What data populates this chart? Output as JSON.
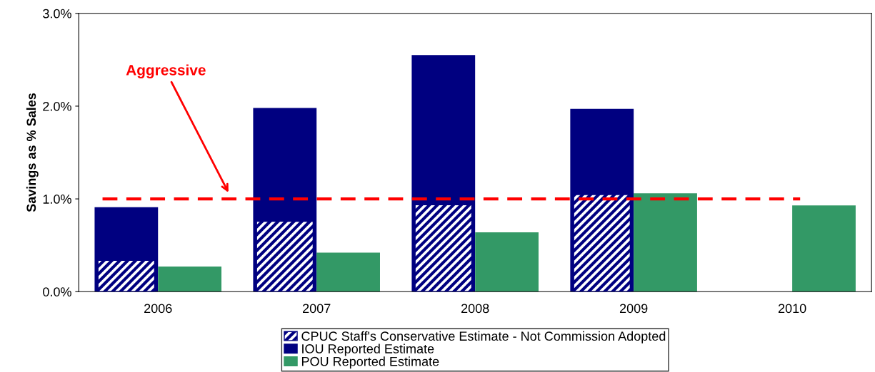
{
  "chart_data": {
    "type": "bar",
    "ylabel": "Savings as % Sales",
    "categories": [
      "2006",
      "2007",
      "2008",
      "2009",
      "2010"
    ],
    "series": [
      {
        "name": "CPUC Staff's Conservative Estimate - Not Commission Adopted",
        "color": "#000080",
        "values": [
          0.34,
          0.76,
          0.94,
          1.05,
          null
        ]
      },
      {
        "name": "IOU Reported Estimate",
        "color": "#000080",
        "values": [
          0.91,
          1.98,
          2.55,
          1.97,
          null
        ]
      },
      {
        "name": "POU Reported Estimate",
        "color": "#339966",
        "values": [
          0.27,
          0.42,
          0.64,
          1.06,
          0.93
        ]
      }
    ],
    "ylim": [
      0,
      3
    ],
    "yticks": [
      {
        "value": 0,
        "label": "0.0%"
      },
      {
        "value": 1,
        "label": "1.0%"
      },
      {
        "value": 2,
        "label": "2.0%"
      },
      {
        "value": 3,
        "label": "3.0%"
      }
    ],
    "ref_lines": [
      {
        "axis": "y",
        "value": 1,
        "label": "Aggressive",
        "color": "#ff0000",
        "line_style": "dashed"
      }
    ],
    "legend": "bottom",
    "grid": false
  }
}
